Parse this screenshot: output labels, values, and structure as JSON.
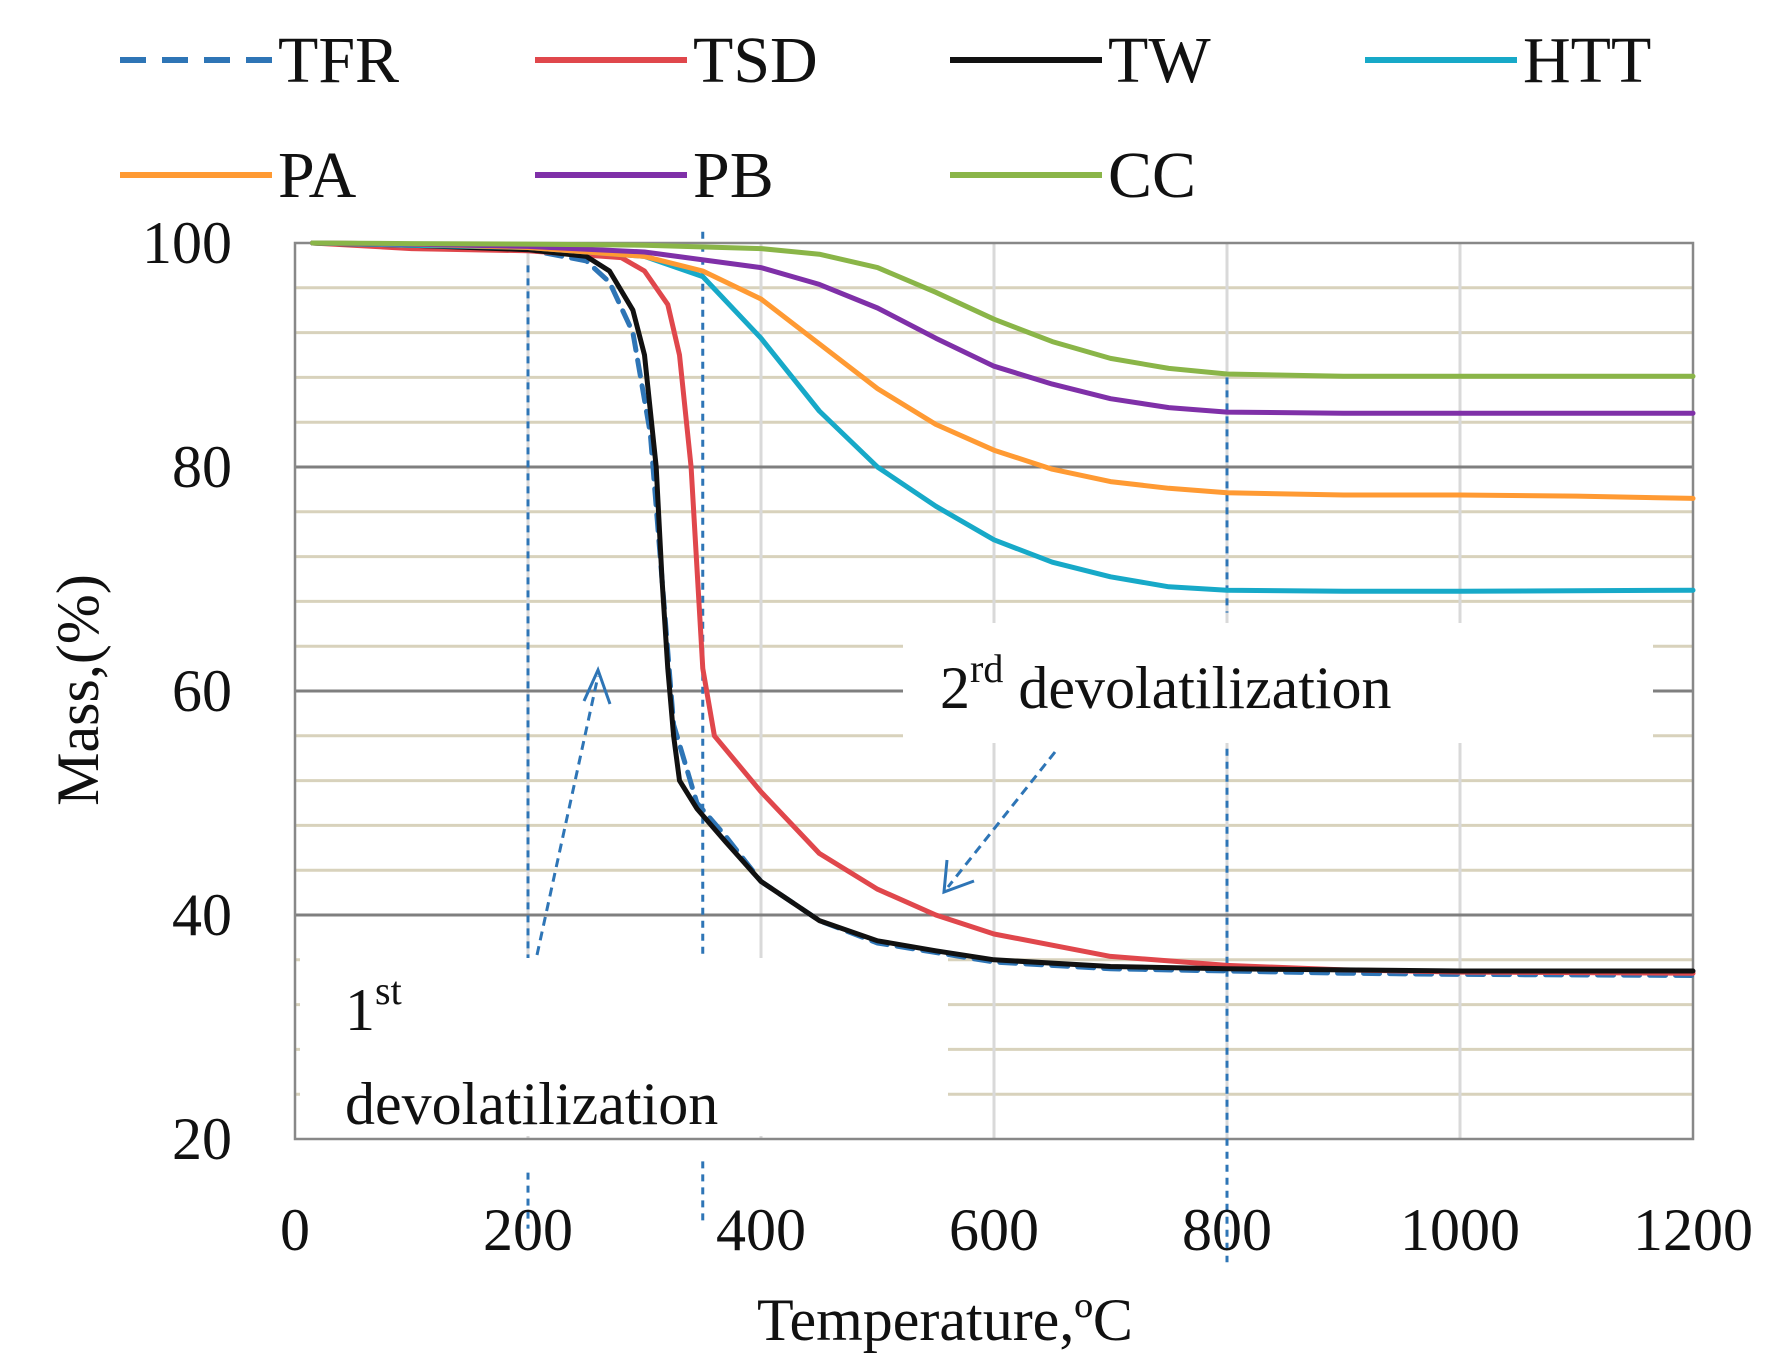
{
  "chart_data": {
    "type": "line",
    "title": "",
    "xlabel": "Temperature,ºC",
    "ylabel": "Mass,(%)",
    "xlim": [
      0,
      1200
    ],
    "ylim": [
      20,
      100
    ],
    "x_ticks": [
      "0",
      "200",
      "400",
      "600",
      "800",
      "1000",
      "1200"
    ],
    "y_ticks": [
      "20",
      "40",
      "60",
      "80",
      "100"
    ],
    "grid": "on",
    "legend_position": "top",
    "series": [
      {
        "name": "TFR",
        "color": "#2e75b6",
        "style": "dashed",
        "x": [
          15,
          100,
          200,
          250,
          270,
          290,
          305,
          315,
          325,
          345,
          370,
          400,
          450,
          500,
          600,
          700,
          800,
          900,
          1000,
          1200
        ],
        "y": [
          100,
          99.8,
          99.4,
          98.4,
          96.5,
          92,
          83,
          70,
          57,
          50,
          47,
          43,
          39.5,
          37.5,
          35.8,
          35.2,
          35,
          34.8,
          34.7,
          34.6
        ]
      },
      {
        "name": "TSD",
        "color": "#e0474c",
        "style": "solid",
        "x": [
          15,
          100,
          200,
          280,
          300,
          320,
          330,
          340,
          350,
          360,
          380,
          400,
          450,
          500,
          550,
          600,
          700,
          800,
          900,
          1000,
          1200
        ],
        "y": [
          100,
          99.5,
          99.3,
          98.7,
          97.5,
          94.5,
          90,
          80,
          62,
          56,
          53.5,
          51,
          45.5,
          42.3,
          40,
          38.3,
          36.3,
          35.5,
          35.1,
          34.9,
          34.8
        ]
      },
      {
        "name": "TW",
        "color": "#111111",
        "style": "solid",
        "x": [
          15,
          100,
          200,
          250,
          270,
          290,
          300,
          310,
          315,
          320,
          325,
          330,
          345,
          370,
          400,
          450,
          500,
          550,
          600,
          700,
          800,
          900,
          1000,
          1200
        ],
        "y": [
          100,
          99.8,
          99.4,
          98.8,
          97.5,
          94,
          90,
          80,
          70,
          62,
          56,
          52,
          49.5,
          46.5,
          43,
          39.5,
          37.7,
          36.8,
          36,
          35.4,
          35.2,
          35.1,
          35,
          35
        ]
      },
      {
        "name": "HTT",
        "color": "#17a9c8",
        "style": "solid",
        "x": [
          15,
          100,
          200,
          300,
          350,
          400,
          450,
          500,
          550,
          600,
          650,
          700,
          750,
          800,
          900,
          1000,
          1200
        ],
        "y": [
          100,
          99.8,
          99.6,
          98.8,
          97,
          91.5,
          85,
          80,
          76.5,
          73.5,
          71.5,
          70.2,
          69.3,
          69,
          68.9,
          68.9,
          69
        ]
      },
      {
        "name": "PA",
        "color": "#ff9a33",
        "style": "solid",
        "x": [
          15,
          100,
          200,
          300,
          350,
          400,
          450,
          500,
          550,
          600,
          650,
          700,
          750,
          800,
          900,
          1000,
          1100,
          1200
        ],
        "y": [
          100,
          99.9,
          99.6,
          98.8,
          97.5,
          95,
          91,
          87,
          83.8,
          81.5,
          79.8,
          78.7,
          78.1,
          77.7,
          77.5,
          77.5,
          77.4,
          77.2
        ]
      },
      {
        "name": "PB",
        "color": "#7f30a8",
        "style": "solid",
        "x": [
          15,
          100,
          200,
          300,
          400,
          450,
          500,
          550,
          600,
          650,
          700,
          750,
          800,
          900,
          1000,
          1200
        ],
        "y": [
          100,
          99.9,
          99.7,
          99.2,
          97.8,
          96.3,
          94.2,
          91.5,
          89,
          87.4,
          86.1,
          85.3,
          84.9,
          84.8,
          84.8,
          84.8
        ]
      },
      {
        "name": "CC",
        "color": "#8ab548",
        "style": "solid",
        "x": [
          15,
          100,
          200,
          300,
          400,
          450,
          500,
          550,
          600,
          650,
          700,
          750,
          800,
          900,
          1000,
          1200
        ],
        "y": [
          100,
          99.95,
          99.9,
          99.8,
          99.5,
          99,
          97.8,
          95.6,
          93.2,
          91.2,
          89.7,
          88.8,
          88.3,
          88.1,
          88.1,
          88.1
        ]
      }
    ],
    "reference_lines_x": [
      200,
      350,
      800
    ],
    "annotations": [
      {
        "id": "first",
        "base": "1",
        "sup": "st",
        "line2": "devolatilization"
      },
      {
        "id": "second",
        "base": "2",
        "sup": "rd",
        "text": " devolatilization"
      }
    ]
  }
}
